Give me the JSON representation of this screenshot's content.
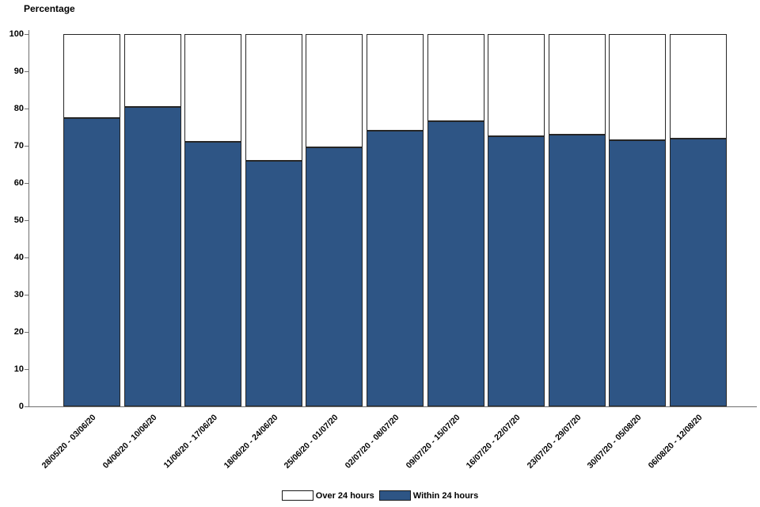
{
  "chart_data": {
    "type": "bar",
    "stacked": true,
    "title": "",
    "ylabel": "Percentage",
    "xlabel": "",
    "ylim": [
      0,
      100
    ],
    "yticks": [
      0,
      10,
      20,
      30,
      40,
      50,
      60,
      70,
      80,
      90,
      100
    ],
    "grid": false,
    "legend_position": "bottom",
    "categories": [
      "28/05/20 - 03/06/20",
      "04/06/20 - 10/06/20",
      "11/06/20 - 17/06/20",
      "18/06/20 - 24/06/20",
      "25/06/20 - 01/07/20",
      "02/07/20 - 08/07/20",
      "09/07/20 - 15/07/20",
      "16/07/20 - 22/07/20",
      "23/07/20 - 29/07/20",
      "30/07/20 - 05/08/20",
      "06/08/20 - 12/08/20"
    ],
    "series": [
      {
        "name": "Within 24 hours",
        "color": "#2e5585",
        "values": [
          77.5,
          80.5,
          71,
          66,
          69.5,
          74,
          76.5,
          72.5,
          73,
          71.5,
          72
        ]
      },
      {
        "name": "Over 24 hours",
        "color": "#ffffff",
        "values": [
          22.5,
          19.5,
          29,
          34,
          30.5,
          26,
          23.5,
          27.5,
          27,
          28.5,
          28
        ]
      }
    ],
    "legend": [
      {
        "label": "Over 24 hours",
        "color": "#ffffff"
      },
      {
        "label": "Within 24 hours",
        "color": "#2e5585"
      }
    ]
  }
}
